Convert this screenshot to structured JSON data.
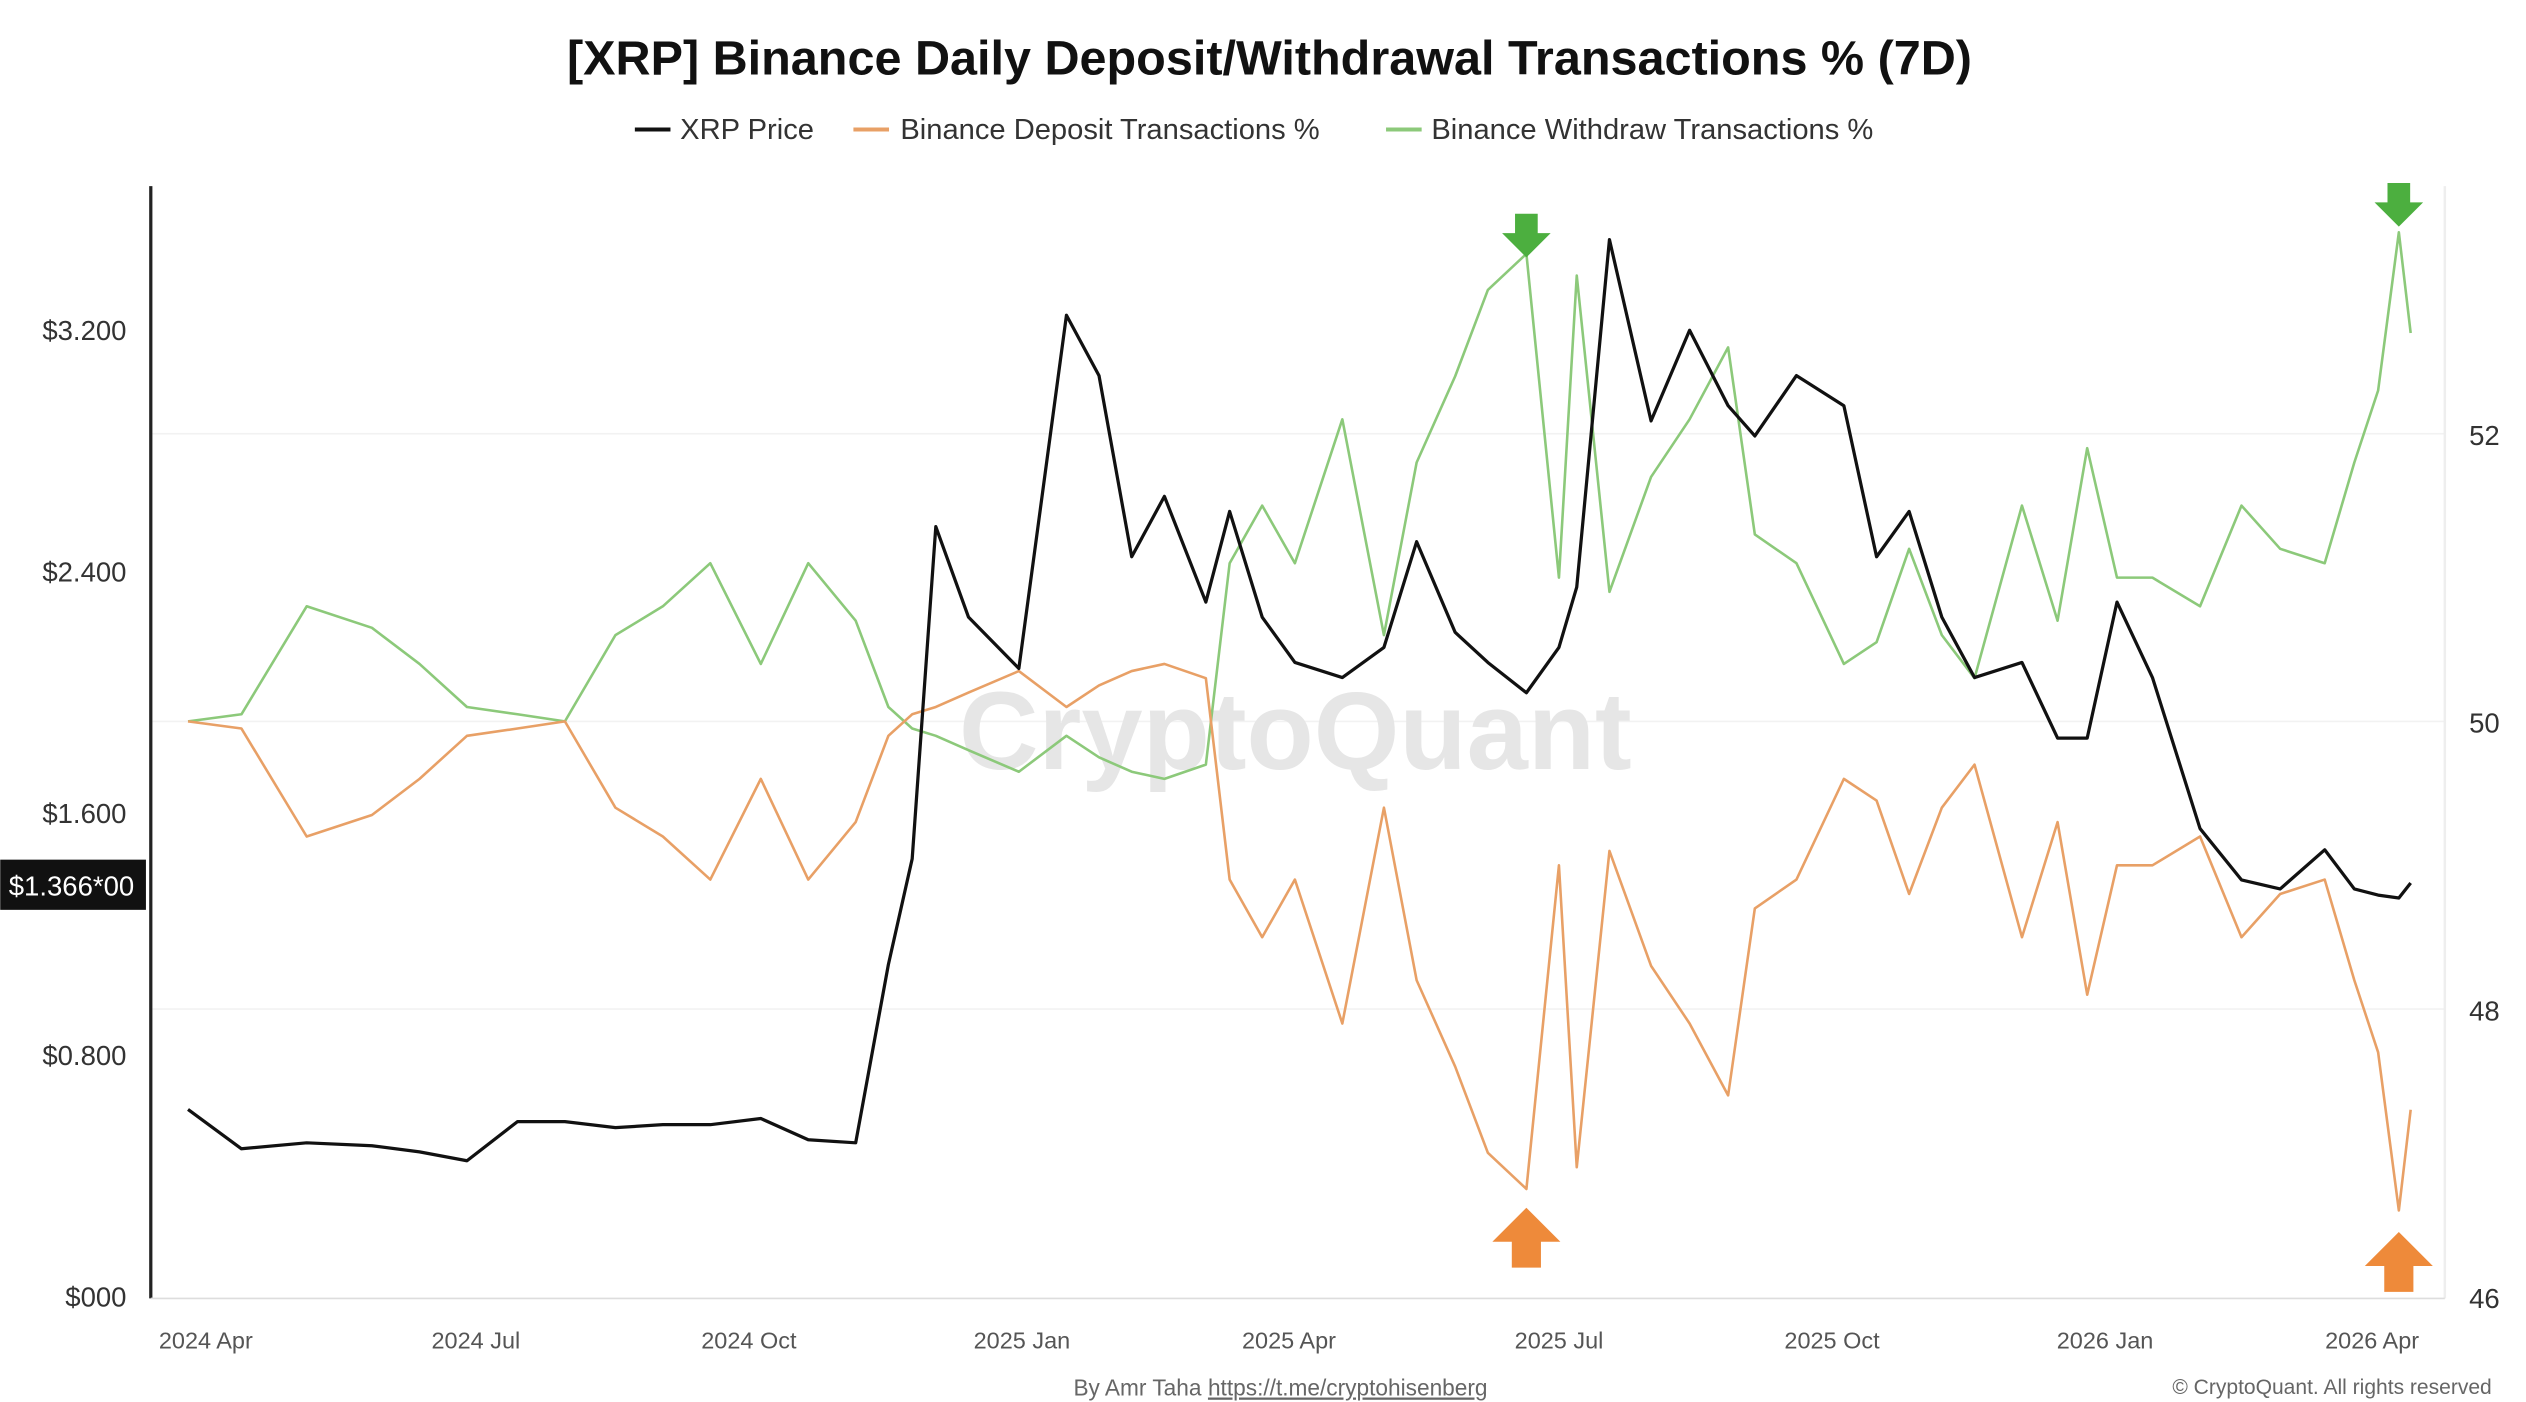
{
  "chart_data": {
    "type": "line",
    "title": "[XRP] Binance Daily Deposit/Withdrawal Transactions % (7D)",
    "legend": [
      "XRP Price",
      "Binance Deposit Transactions %",
      "Binance Withdraw Transactions %"
    ],
    "legend_placement": "top-center",
    "colors": {
      "price": "#111111",
      "deposit": "#e8a066",
      "withdraw": "#8cc97a",
      "arrow_green": "#4caf3f",
      "arrow_orange": "#ee8a3a"
    },
    "x": [
      "2024-03-26",
      "2024-04-13",
      "2024-05-05",
      "2024-05-27",
      "2024-06-12",
      "2024-06-28",
      "2024-07-15",
      "2024-07-31",
      "2024-08-17",
      "2024-09-02",
      "2024-09-18",
      "2024-10-05",
      "2024-10-21",
      "2024-11-06",
      "2024-11-17",
      "2024-11-25",
      "2024-12-03",
      "2024-12-14",
      "2024-12-31",
      "2025-01-16",
      "2025-01-27",
      "2025-02-07",
      "2025-02-18",
      "2025-03-04",
      "2025-03-12",
      "2025-03-23",
      "2025-04-03",
      "2025-04-19",
      "2025-05-03",
      "2025-05-14",
      "2025-05-27",
      "2025-06-07",
      "2025-06-20",
      "2025-07-01",
      "2025-07-07",
      "2025-07-18",
      "2025-08-01",
      "2025-08-14",
      "2025-08-27",
      "2025-09-05",
      "2025-09-19",
      "2025-10-05",
      "2025-10-16",
      "2025-10-27",
      "2025-11-07",
      "2025-11-18",
      "2025-12-04",
      "2025-12-16",
      "2025-12-26",
      "2026-01-05",
      "2026-01-17",
      "2026-02-02",
      "2026-02-16",
      "2026-03-01",
      "2026-03-16",
      "2026-03-26",
      "2026-04-03",
      "2026-04-10",
      "2026-04-14"
    ],
    "series": [
      {
        "name": "XRP Price",
        "axis": "left",
        "values": [
          0.62,
          0.49,
          0.51,
          0.5,
          0.48,
          0.45,
          0.58,
          0.58,
          0.56,
          0.57,
          0.57,
          0.59,
          0.52,
          0.51,
          1.1,
          1.45,
          2.55,
          2.25,
          2.08,
          3.25,
          3.05,
          2.45,
          2.65,
          2.3,
          2.6,
          2.25,
          2.1,
          2.05,
          2.15,
          2.5,
          2.2,
          2.1,
          2.0,
          2.15,
          2.35,
          3.5,
          2.9,
          3.2,
          2.95,
          2.85,
          3.05,
          2.95,
          2.45,
          2.6,
          2.25,
          2.05,
          2.1,
          1.85,
          1.85,
          2.3,
          2.05,
          1.55,
          1.38,
          1.35,
          1.48,
          1.35,
          1.33,
          1.32,
          1.37
        ]
      },
      {
        "name": "Binance Deposit Transactions %",
        "axis": "right",
        "values": [
          50.0,
          49.95,
          49.2,
          49.35,
          49.6,
          49.9,
          49.95,
          50.0,
          49.4,
          49.2,
          48.9,
          49.6,
          48.9,
          49.3,
          49.9,
          50.05,
          50.1,
          50.2,
          50.35,
          50.1,
          50.25,
          50.35,
          50.4,
          50.3,
          48.9,
          48.5,
          48.9,
          47.9,
          49.4,
          48.2,
          47.6,
          47.0,
          46.75,
          49.0,
          46.9,
          49.1,
          48.3,
          47.9,
          47.4,
          48.7,
          48.9,
          49.6,
          49.45,
          48.8,
          49.4,
          49.7,
          48.5,
          49.3,
          48.1,
          49.0,
          49.0,
          49.2,
          48.5,
          48.8,
          48.9,
          48.2,
          47.7,
          46.6,
          47.3
        ]
      },
      {
        "name": "Binance Withdraw Transactions %",
        "axis": "right",
        "values": [
          50.0,
          50.05,
          50.8,
          50.65,
          50.4,
          50.1,
          50.05,
          50.0,
          50.6,
          50.8,
          51.1,
          50.4,
          51.1,
          50.7,
          50.1,
          49.95,
          49.9,
          49.8,
          49.65,
          49.9,
          49.75,
          49.65,
          49.6,
          49.7,
          51.1,
          51.5,
          51.1,
          52.1,
          50.6,
          51.8,
          52.4,
          53.0,
          53.25,
          51.0,
          53.1,
          50.9,
          51.7,
          52.1,
          52.6,
          51.3,
          51.1,
          50.4,
          50.55,
          51.2,
          50.6,
          50.3,
          51.5,
          50.7,
          51.9,
          51.0,
          51.0,
          50.8,
          51.5,
          51.2,
          51.1,
          51.8,
          52.3,
          53.4,
          52.7
        ]
      }
    ],
    "left_axis": {
      "ticks": [
        "$000",
        "$0.800",
        "$1.600",
        "$2.400",
        "$3.200"
      ],
      "values": [
        0,
        0.8,
        1.6,
        2.4,
        3.2
      ],
      "ylim": [
        0,
        3.69
      ]
    },
    "right_axis": {
      "ticks": [
        "46",
        "48",
        "50",
        "52"
      ],
      "values": [
        46,
        48,
        50,
        52
      ],
      "ylim": [
        46,
        53.8
      ]
    },
    "x_ticks": [
      {
        "label": "2024 Apr",
        "date": "2024-04-01"
      },
      {
        "label": "2024 Jul",
        "date": "2024-07-01"
      },
      {
        "label": "2024 Oct",
        "date": "2024-10-01"
      },
      {
        "label": "2025 Jan",
        "date": "2025-01-01"
      },
      {
        "label": "2025 Apr",
        "date": "2025-04-01"
      },
      {
        "label": "2025 Jul",
        "date": "2025-07-01"
      },
      {
        "label": "2025 Oct",
        "date": "2025-10-01"
      },
      {
        "label": "2026 Jan",
        "date": "2026-01-01"
      },
      {
        "label": "2026 Apr",
        "date": "2026-04-01"
      }
    ],
    "current_price_label": "$1.366*00",
    "current_price": 1.366,
    "annotations": [
      {
        "type": "arrow-down",
        "color": "green",
        "date": "2025-06-20"
      },
      {
        "type": "arrow-down",
        "color": "green",
        "date": "2026-04-10"
      },
      {
        "type": "arrow-up",
        "color": "orange",
        "date": "2025-06-20"
      },
      {
        "type": "arrow-up",
        "color": "orange",
        "date": "2026-04-10"
      }
    ],
    "grid": true
  },
  "watermark": "CryptoQuant",
  "footer": {
    "byline": "By Amr Taha",
    "link": "https://t.me/cryptohisenberg",
    "copyright": "© CryptoQuant. All rights reserved"
  }
}
